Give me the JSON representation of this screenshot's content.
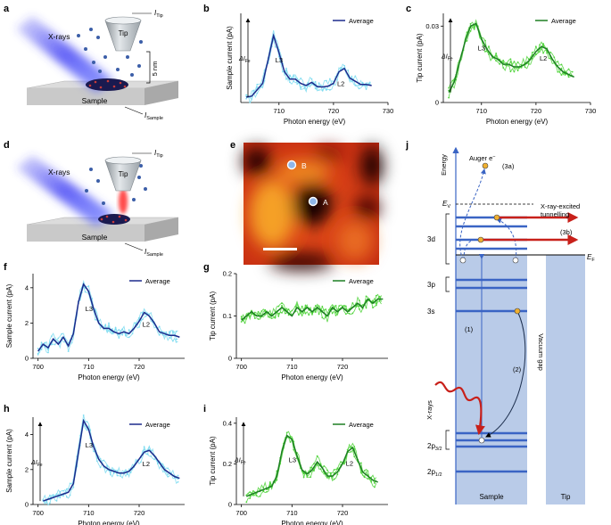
{
  "colors": {
    "sample_dark": "#1c2a8c",
    "sample_light": "#7fdcf0",
    "tip_dark": "#1d7f23",
    "tip_light": "#4fd43a",
    "energy_band": "#b9cbe8",
    "level": "#3a64c4",
    "arrow_red": "#c8201a",
    "dot": "#f0b030"
  },
  "panel_labels": [
    "a",
    "b",
    "c",
    "d",
    "e",
    "f",
    "g",
    "h",
    "i",
    "j"
  ],
  "schematic_a": {
    "xrays": "X-rays",
    "tip": "Tip",
    "itip": "I",
    "itip_sub": "Tip",
    "height": "5 nm",
    "sample": "Sample",
    "isample": "I",
    "isample_sub": "Sample"
  },
  "schematic_d": {
    "xrays": "X-rays",
    "tip": "Tip",
    "itip": "I",
    "itip_sub": "Tip",
    "sample": "Sample",
    "isample": "I",
    "isample_sub": "Sample"
  },
  "image_e": {
    "point_a": "A",
    "point_b": "B"
  },
  "chart_data": [
    {
      "id": "b",
      "type": "line",
      "xlabel": "Photon energy (eV)",
      "ylabel": "Sample current (pA)",
      "xlim": [
        703,
        730
      ],
      "x_ticks": [
        710,
        720,
        730
      ],
      "legend": "Average",
      "annotations": [
        "L3",
        "L2"
      ],
      "delta_label": "ΔI",
      "delta_sub": "Fe",
      "series": [
        {
          "name": "Average",
          "x": [
            704,
            705,
            706,
            707,
            708,
            709,
            710,
            711,
            712,
            713,
            714,
            715,
            716,
            717,
            718,
            719,
            720,
            721,
            722,
            723,
            724,
            725,
            726,
            727
          ],
          "y": [
            0.1,
            0.15,
            0.45,
            0.75,
            1.85,
            3.0,
            2.2,
            1.3,
            0.95,
            0.95,
            0.75,
            0.65,
            0.8,
            0.6,
            0.58,
            0.62,
            0.75,
            1.3,
            1.45,
            1.0,
            0.85,
            0.7,
            0.7,
            0.65
          ]
        }
      ]
    },
    {
      "id": "c",
      "type": "line",
      "xlabel": "Photon energy (eV)",
      "ylabel": "Tip current (pA)",
      "xlim": [
        703,
        730
      ],
      "ylim": [
        0,
        0.035
      ],
      "x_ticks": [
        710,
        720,
        730
      ],
      "y_ticks": [
        0,
        0.03
      ],
      "y_tick_labels": [
        "0",
        "0.03"
      ],
      "legend": "Average",
      "annotations": [
        "L3",
        "L2"
      ],
      "delta_label": "ΔI",
      "delta_sub": "Fe",
      "series": [
        {
          "name": "Average",
          "x": [
            704,
            705,
            706,
            707,
            708,
            709,
            710,
            711,
            712,
            713,
            714,
            715,
            716,
            717,
            718,
            719,
            720,
            721,
            722,
            723,
            724,
            725,
            726,
            727
          ],
          "y": [
            0.004,
            0.008,
            0.016,
            0.024,
            0.03,
            0.031,
            0.025,
            0.021,
            0.018,
            0.017,
            0.015,
            0.015,
            0.014,
            0.014,
            0.015,
            0.017,
            0.02,
            0.022,
            0.021,
            0.017,
            0.014,
            0.012,
            0.011,
            0.01
          ]
        }
      ]
    },
    {
      "id": "f",
      "type": "line",
      "xlabel": "Photon energy (eV)",
      "ylabel": "Sample current (pA)",
      "xlim": [
        699,
        729
      ],
      "ylim": [
        0,
        4.8
      ],
      "x_ticks": [
        700,
        710,
        720
      ],
      "y_ticks": [
        0,
        2,
        4
      ],
      "legend": "Average",
      "annotations": [
        "L3",
        "L2"
      ],
      "series": [
        {
          "name": "Average",
          "x": [
            700,
            701,
            702,
            703,
            704,
            705,
            706,
            707,
            708,
            709,
            710,
            711,
            712,
            713,
            714,
            715,
            716,
            717,
            718,
            719,
            720,
            721,
            722,
            723,
            724,
            725,
            726,
            727,
            728
          ],
          "y": [
            0.4,
            0.8,
            0.6,
            1.1,
            0.8,
            1.2,
            0.7,
            1.4,
            3.2,
            4.2,
            3.8,
            2.8,
            2.0,
            1.7,
            1.7,
            1.5,
            1.4,
            1.5,
            1.4,
            1.7,
            2.1,
            2.6,
            2.4,
            2.0,
            1.5,
            1.4,
            1.3,
            1.3,
            1.2
          ]
        }
      ]
    },
    {
      "id": "g",
      "type": "line",
      "xlabel": "Photon energy (eV)",
      "ylabel": "Tip current (pA)",
      "xlim": [
        699,
        729
      ],
      "ylim": [
        0,
        0.2
      ],
      "x_ticks": [
        700,
        710,
        720
      ],
      "y_ticks": [
        0,
        0.1,
        0.2
      ],
      "legend": "Average",
      "series": [
        {
          "name": "Average",
          "x": [
            700,
            701,
            702,
            703,
            704,
            705,
            706,
            707,
            708,
            709,
            710,
            711,
            712,
            713,
            714,
            715,
            716,
            717,
            718,
            719,
            720,
            721,
            722,
            723,
            724,
            725,
            726,
            727,
            728
          ],
          "y": [
            0.09,
            0.1,
            0.11,
            0.1,
            0.1,
            0.11,
            0.1,
            0.11,
            0.12,
            0.11,
            0.1,
            0.12,
            0.11,
            0.12,
            0.11,
            0.12,
            0.11,
            0.1,
            0.12,
            0.11,
            0.12,
            0.11,
            0.12,
            0.13,
            0.12,
            0.14,
            0.13,
            0.14,
            0.14
          ]
        }
      ]
    },
    {
      "id": "h",
      "type": "line",
      "xlabel": "Photon energy (eV)",
      "ylabel": "Sample current (pA)",
      "xlim": [
        699,
        729
      ],
      "ylim": [
        0,
        5
      ],
      "x_ticks": [
        700,
        710,
        720
      ],
      "y_ticks": [
        0,
        2,
        4
      ],
      "legend": "Average",
      "annotations": [
        "L3",
        "L2"
      ],
      "delta_label": "ΔI",
      "delta_sub": "Fe",
      "series": [
        {
          "name": "Average",
          "x": [
            701,
            702,
            703,
            704,
            705,
            706,
            707,
            708,
            709,
            710,
            711,
            712,
            713,
            714,
            715,
            716,
            717,
            718,
            719,
            720,
            721,
            722,
            723,
            724,
            725,
            726,
            727,
            728
          ],
          "y": [
            0.2,
            0.3,
            0.4,
            0.5,
            0.6,
            0.7,
            1.2,
            3.0,
            4.8,
            4.3,
            3.3,
            2.6,
            2.2,
            2.0,
            1.9,
            1.8,
            1.8,
            1.9,
            2.2,
            2.6,
            3.0,
            3.1,
            2.8,
            2.4,
            2.0,
            1.8,
            1.6,
            1.5
          ]
        }
      ]
    },
    {
      "id": "i",
      "type": "line",
      "xlabel": "Photon energy (eV)",
      "ylabel": "Tip current (pA)",
      "xlim": [
        699,
        729
      ],
      "ylim": [
        0,
        0.43
      ],
      "x_ticks": [
        700,
        710,
        720
      ],
      "y_ticks": [
        0,
        0.2,
        0.4
      ],
      "legend": "Average",
      "annotations": [
        "L3",
        "L2"
      ],
      "delta_label": "ΔI",
      "delta_sub": "Fe",
      "series": [
        {
          "name": "Average",
          "x": [
            701,
            702,
            703,
            704,
            705,
            706,
            707,
            708,
            709,
            710,
            711,
            712,
            713,
            714,
            715,
            716,
            717,
            718,
            719,
            720,
            721,
            722,
            723,
            724,
            725,
            726,
            727
          ],
          "y": [
            0.04,
            0.05,
            0.06,
            0.07,
            0.08,
            0.09,
            0.14,
            0.26,
            0.34,
            0.32,
            0.24,
            0.17,
            0.15,
            0.17,
            0.21,
            0.18,
            0.14,
            0.14,
            0.16,
            0.2,
            0.26,
            0.28,
            0.22,
            0.16,
            0.14,
            0.12,
            0.11
          ]
        }
      ]
    }
  ],
  "diagram_j": {
    "energy": "Energy",
    "auger": "Auger e",
    "auger_sup": "−",
    "label_3a": "(3a)",
    "label_3b": "(3b)",
    "ev": "E",
    "ev_sub": "V",
    "ef": "E",
    "ef_sub": "F",
    "xray_tunnel_1": "X-ray-excited",
    "xray_tunnel_2": "tunnelling",
    "level_3d": "3d",
    "level_3p": "3p",
    "level_3s": "3s",
    "label_1": "(1)",
    "label_2": "(2)",
    "xrays": "X-rays",
    "vacuum_gap": "Vacuum gap",
    "level_2p32": "2p",
    "level_2p32_sub": "3/2",
    "level_2p12": "2p",
    "level_2p12_sub": "1/2",
    "sample": "Sample",
    "tip": "Tip"
  }
}
